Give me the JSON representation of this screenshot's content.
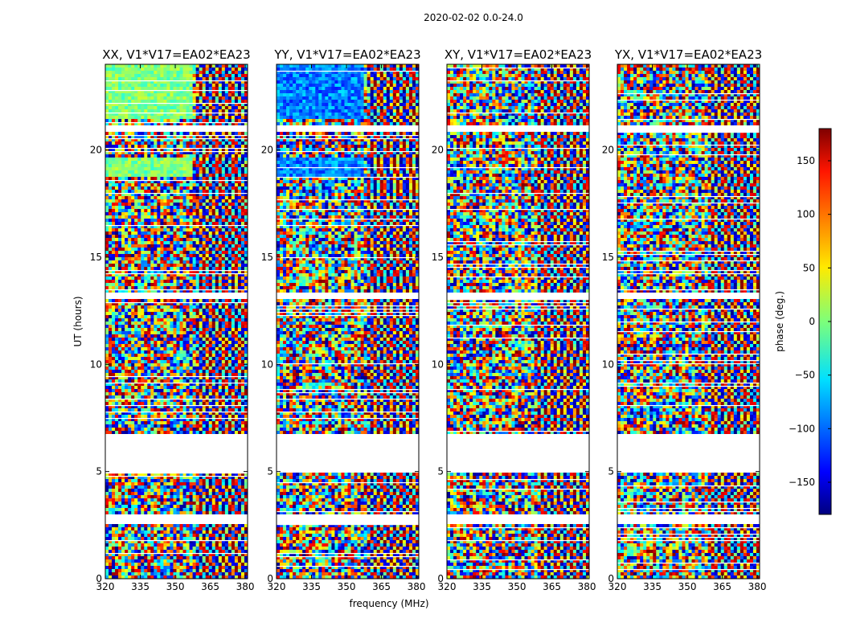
{
  "chart_data": {
    "type": "heatmap",
    "suptitle": "2020-02-02 0.0-24.0",
    "xlabel": "frequency (MHz)",
    "ylabel": "UT (hours)",
    "xlim": [
      320,
      381
    ],
    "ylim": [
      0,
      24
    ],
    "xticks": [
      "320",
      "335",
      "350",
      "365",
      "380"
    ],
    "yticks": [
      "0",
      "5",
      "10",
      "15",
      "20"
    ],
    "panels": [
      {
        "title": "XX, V1*V17=EA02*EA23",
        "polarization": "XX"
      },
      {
        "title": "YY, V1*V17=EA02*EA23",
        "polarization": "YY"
      },
      {
        "title": "XY, V1*V17=EA02*EA23",
        "polarization": "XY"
      },
      {
        "title": "YX, V1*V17=EA02*EA23",
        "polarization": "YX"
      }
    ],
    "colorbar": {
      "label": "phase (deg.)",
      "range": [
        -180,
        180
      ],
      "ticks": [
        "150",
        "100",
        "50",
        "0",
        "−50",
        "−100",
        "−150"
      ],
      "colormap": "jet"
    },
    "data_gaps_ut": [
      [
        2.6,
        3.0
      ],
      [
        5.0,
        6.8
      ],
      [
        13.0,
        13.3
      ],
      [
        20.9,
        21.1
      ]
    ],
    "grid": false
  }
}
